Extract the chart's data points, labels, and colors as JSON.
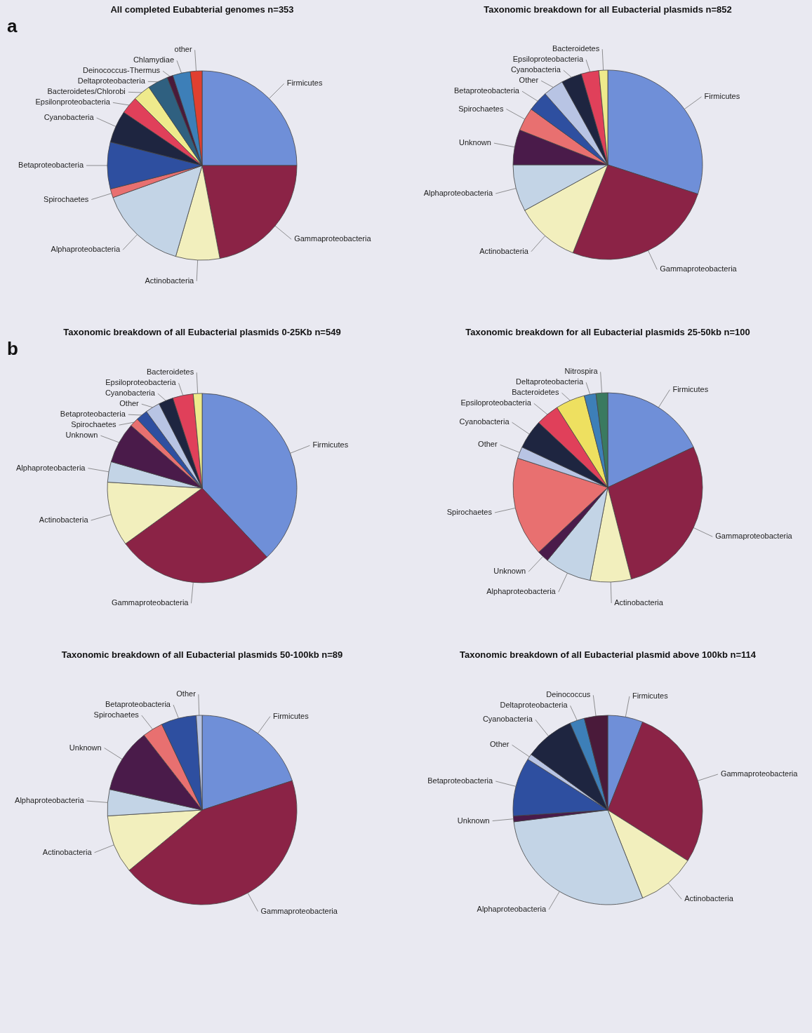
{
  "chart_data": [
    {
      "type": "pie",
      "title": "All completed Eubabterial genomes n=353",
      "annotations": [
        "a"
      ],
      "categories": [
        "Firmicutes",
        "Gammaproteobacteria",
        "Actinobacteria",
        "Alphaproteobacteria",
        "Spirochaetes",
        "Betaproteobacteria",
        "Cyanobacteria",
        "Epsilonproteobacteria",
        "Bacteroidetes/Chlorobi",
        "Deltaproteobacteria",
        "Deinococcus-Thermus",
        "Chlamydiae",
        "other"
      ],
      "values": [
        25,
        22,
        7.5,
        15,
        1.5,
        8,
        5.5,
        3,
        3,
        3.5,
        1,
        3,
        2
      ],
      "colors": [
        "#6f8fd8",
        "#8b2346",
        "#f2efbd",
        "#c3d4e6",
        "#e87070",
        "#2e4fa0",
        "#1e2540",
        "#e0405a",
        "#eeea8c",
        "#2f6080",
        "#4a1a3a",
        "#3d7fb8",
        "#e04030"
      ]
    },
    {
      "type": "pie",
      "title": "Taxonomic breakdown for all Eubacterial plasmids n=852",
      "categories": [
        "Firmicutes",
        "Gammaproteobacteria",
        "Actinobacteria",
        "Alphaproteobacteria",
        "Unknown",
        "Spirochaetes",
        "Betaproteobacteria",
        "Other",
        "Cyanobacteria",
        "Epsiloproteobacteria",
        "Bacteroidetes"
      ],
      "values": [
        30,
        26,
        11,
        8,
        6,
        4,
        3.5,
        3.5,
        3.5,
        3,
        1.5
      ],
      "colors": [
        "#6f8fd8",
        "#8b2346",
        "#f2efbd",
        "#c3d4e6",
        "#4a1b4a",
        "#e87070",
        "#2e4fa0",
        "#b8c4e4",
        "#1e2540",
        "#e0405a",
        "#eeea8c"
      ]
    },
    {
      "type": "pie",
      "title": "Taxonomic breakdown of all Eubacterial plasmids 0-25Kb n=549",
      "annotations": [
        "b"
      ],
      "categories": [
        "Firmicutes",
        "Gammaproteobacteria",
        "Actinobacteria",
        "Alphaproteobacteria",
        "Unknown",
        "Spirochaetes",
        "Betaproteobacteria",
        "Other",
        "Cyanobacteria",
        "Epsiloproteobacteria",
        "Bacteroidetes"
      ],
      "values": [
        38,
        27,
        11,
        3.5,
        7,
        1.5,
        2,
        2.5,
        2.5,
        3.5,
        1.5
      ],
      "colors": [
        "#6f8fd8",
        "#8b2346",
        "#f2efbd",
        "#c3d4e6",
        "#4a1b4a",
        "#e87070",
        "#2e4fa0",
        "#b8c4e4",
        "#1e2540",
        "#e0405a",
        "#eeea8c"
      ]
    },
    {
      "type": "pie",
      "title": "Taxonomic breakdown for all Eubacterial plasmids 25-50kb n=100",
      "categories": [
        "Firmicutes",
        "Gammaproteobacteria",
        "Actinobacteria",
        "Alphaproteobacteria",
        "Unknown",
        "Spirochaetes",
        "Other",
        "Cyanobacteria",
        "Epsiloproteobacteria",
        "Bacteroidetes",
        "Deltaproteobacteria",
        "Nitrospira"
      ],
      "values": [
        18,
        28,
        7,
        8,
        2,
        17,
        2,
        5,
        4,
        5,
        2,
        2
      ],
      "colors": [
        "#6f8fd8",
        "#8b2346",
        "#f2efbd",
        "#c3d4e6",
        "#4a1b4a",
        "#e87070",
        "#b8c4e4",
        "#1e2540",
        "#e0405a",
        "#eee060",
        "#3d7fb8",
        "#3a7a60"
      ]
    },
    {
      "type": "pie",
      "title": "Taxonomic breakdown of all Eubacterial plasmids 50-100kb n=89",
      "categories": [
        "Firmicutes",
        "Gammaproteobacteria",
        "Actinobacteria",
        "Alphaproteobacteria",
        "Unknown",
        "Spirochaetes",
        "Betaproteobacteria",
        "Other"
      ],
      "values": [
        20,
        44,
        10,
        4.5,
        11,
        3.5,
        6,
        1
      ],
      "colors": [
        "#6f8fd8",
        "#8b2346",
        "#f2efbd",
        "#c3d4e6",
        "#4a1b4a",
        "#e87070",
        "#2e4fa0",
        "#b8c4e4"
      ]
    },
    {
      "type": "pie",
      "title": "Taxonomic breakdown of all Eubacterial plasmid above 100kb n=114",
      "categories": [
        "Firmicutes",
        "Gammaproteobacteria",
        "Actinobacteria",
        "Alphaproteobacteria",
        "Unknown",
        "Betaproteobacteria",
        "Other",
        "Cyanobacteria",
        "Deltaproteobacteria",
        "Deinococcus"
      ],
      "values": [
        6,
        28,
        10,
        29,
        1,
        10,
        1,
        8.5,
        2.5,
        4
      ],
      "colors": [
        "#6f8fd8",
        "#8b2346",
        "#f2efbd",
        "#c3d4e6",
        "#4a1b4a",
        "#2e4fa0",
        "#b8c4e4",
        "#1e2540",
        "#3d7fb8",
        "#4a1a3a"
      ]
    }
  ]
}
